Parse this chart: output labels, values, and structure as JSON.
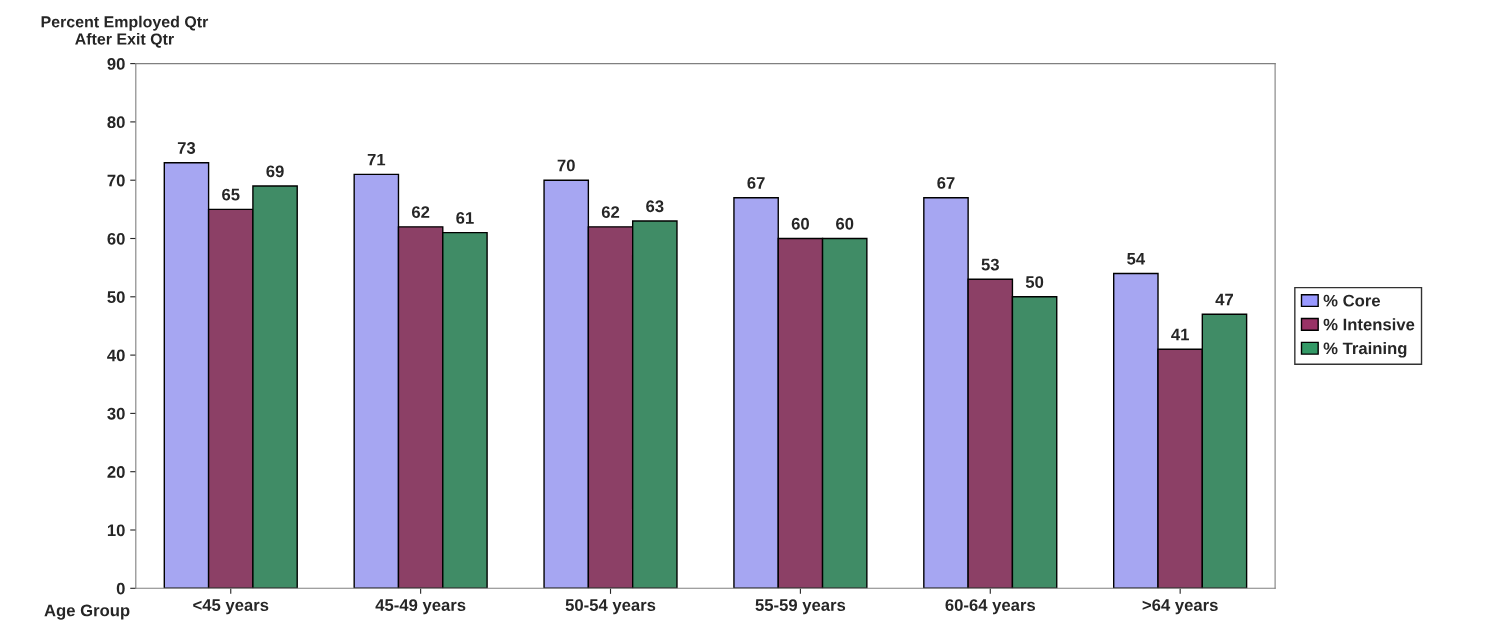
{
  "chart_data": {
    "type": "bar",
    "ylabel": "Percent Employed Qtr\nAfter Exit Qtr",
    "xlabel": "Age Group",
    "categories": [
      "<45 years",
      "45-49 years",
      "50-54 years",
      "55-59 years",
      "60-64 years",
      ">64 years"
    ],
    "series": [
      {
        "name": "% Core",
        "color": "#9999ff",
        "values": [
          73,
          71,
          70,
          67,
          67,
          54
        ]
      },
      {
        "name": "% Intensive",
        "color": "#993366",
        "values": [
          65,
          62,
          62,
          60,
          53,
          41
        ]
      },
      {
        "name": "% Training",
        "color": "#339966",
        "values": [
          69,
          61,
          63,
          60,
          50,
          47
        ]
      }
    ],
    "ylim": [
      0,
      90
    ],
    "yticks": [
      0,
      10,
      20,
      30,
      40,
      50,
      60,
      70,
      80,
      90
    ],
    "data_labels": true,
    "grid": false,
    "legend": "right"
  }
}
